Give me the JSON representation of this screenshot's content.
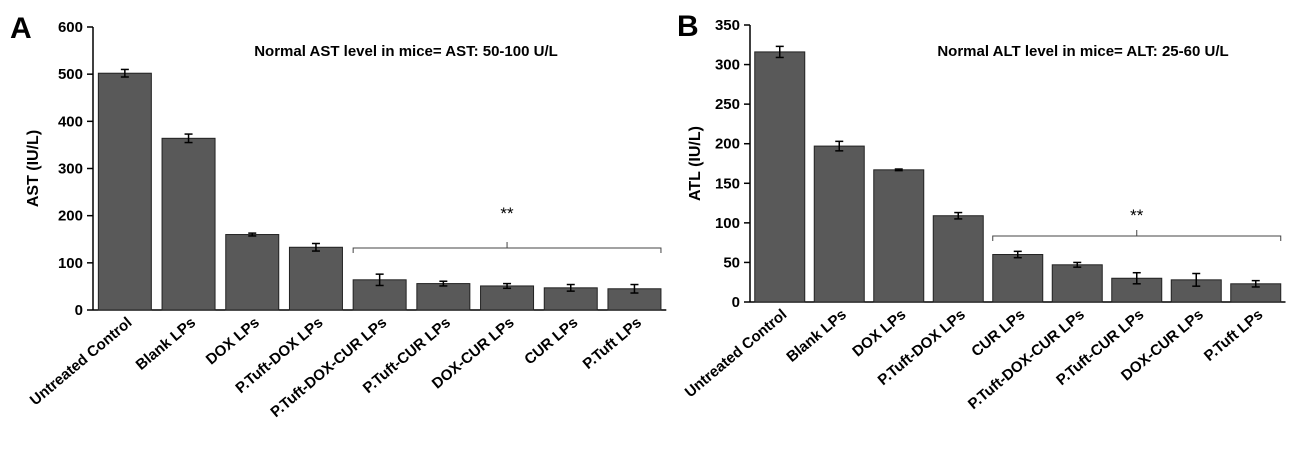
{
  "chart_data": [
    {
      "type": "bar",
      "panel_label": "A",
      "ylabel": "AST (IU/L)",
      "xlabel": "",
      "ylim": [
        0,
        600
      ],
      "yticks": [
        0,
        100,
        200,
        300,
        400,
        500,
        600
      ],
      "annotation": "Normal AST level in mice= AST: 50-100 U/L",
      "categories": [
        "Untreated Control",
        "Blank LPs",
        "DOX LPs",
        "P.Tuft-DOX LPs",
        "P.Tuft-DOX-CUR LPs",
        "P.Tuft-CUR LPs",
        "DOX-CUR LPs",
        "CUR LPs",
        "P.Tuft LPs"
      ],
      "values": [
        502,
        364,
        160,
        133,
        64,
        56,
        51,
        47,
        45
      ],
      "errors": [
        8,
        9,
        3,
        8,
        12,
        5,
        5,
        7,
        9
      ],
      "significance": {
        "label": "**",
        "from": 4,
        "to": 8
      },
      "bar_color": "#595959",
      "grid": false
    },
    {
      "type": "bar",
      "panel_label": "B",
      "ylabel": "ATL (IU/L)",
      "xlabel": "",
      "ylim": [
        0,
        350
      ],
      "yticks": [
        0,
        50,
        100,
        150,
        200,
        250,
        300,
        350
      ],
      "annotation": "Normal ALT level in mice= ALT: 25-60 U/L",
      "categories": [
        "Untreated Control",
        "Blank LPs",
        "DOX LPs",
        "P.Tuft-DOX LPs",
        "CUR LPs",
        "P.Tuft-DOX-CUR LPs",
        "P.Tuft-CUR LPs",
        "DOX-CUR LPs",
        "P.Tuft LPs"
      ],
      "values": [
        316,
        197,
        167,
        109,
        60,
        47,
        30,
        28,
        23
      ],
      "errors": [
        7,
        6,
        1,
        4,
        4,
        3,
        7,
        8,
        4
      ],
      "significance": {
        "label": "**",
        "from": 4,
        "to": 8
      },
      "bar_color": "#595959",
      "grid": false
    }
  ]
}
